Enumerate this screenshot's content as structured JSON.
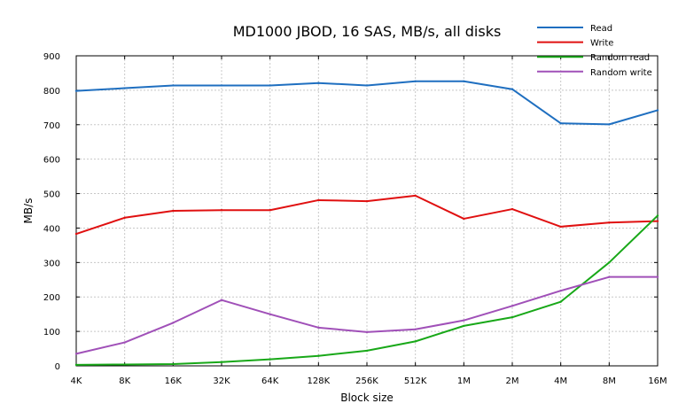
{
  "chart_data": {
    "type": "line",
    "title": "MD1000 JBOD, 16 SAS, MB/s, all disks",
    "xlabel": "Block size",
    "ylabel": "MB/s",
    "categories": [
      "4K",
      "8K",
      "16K",
      "32K",
      "64K",
      "128K",
      "256K",
      "512K",
      "1M",
      "2M",
      "4M",
      "8M",
      "16M"
    ],
    "yticks": [
      "0",
      "100",
      "200",
      "300",
      "400",
      "500",
      "600",
      "700",
      "800",
      "900"
    ],
    "ylim": [
      0,
      900
    ],
    "grid": true,
    "legend_position": "top-right",
    "series": [
      {
        "name": "Read",
        "color": "#1f6fc0",
        "values": [
          798,
          806,
          814,
          814,
          814,
          821,
          814,
          826,
          826,
          803,
          704,
          701,
          742
        ]
      },
      {
        "name": "Write",
        "color": "#e01010",
        "values": [
          383,
          430,
          450,
          452,
          452,
          481,
          478,
          494,
          427,
          455,
          404,
          416,
          420
        ]
      },
      {
        "name": "Random read",
        "color": "#18a818",
        "values": [
          3,
          4,
          5,
          11,
          19,
          29,
          44,
          71,
          116,
          141,
          186,
          300,
          436
        ]
      },
      {
        "name": "Random write",
        "color": "#a050b8",
        "values": [
          35,
          68,
          125,
          191,
          150,
          111,
          98,
          106,
          132,
          174,
          218,
          258,
          258
        ]
      }
    ]
  }
}
